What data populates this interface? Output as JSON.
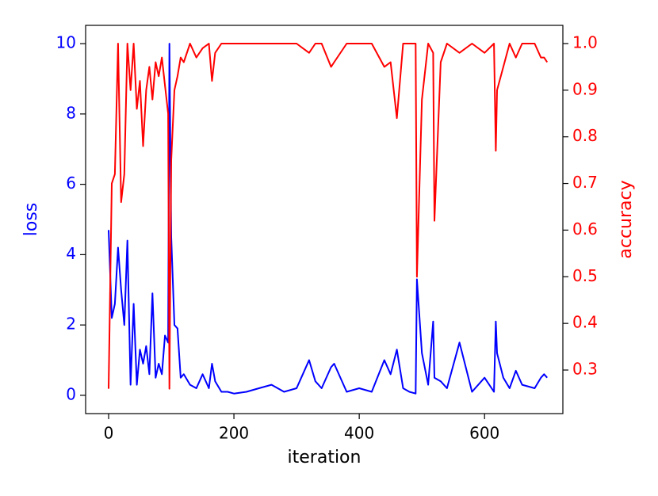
{
  "chart_data": {
    "type": "line",
    "x_label": "iteration",
    "y_label": "loss",
    "y2_label": "accuracy",
    "x": [
      0,
      5,
      10,
      15,
      20,
      25,
      30,
      35,
      40,
      45,
      50,
      55,
      60,
      65,
      70,
      75,
      80,
      85,
      90,
      95,
      97,
      100,
      105,
      110,
      115,
      120,
      130,
      140,
      150,
      160,
      165,
      170,
      180,
      190,
      200,
      220,
      240,
      260,
      280,
      300,
      320,
      330,
      340,
      355,
      360,
      380,
      400,
      420,
      440,
      450,
      460,
      470,
      480,
      490,
      492,
      500,
      510,
      518,
      520,
      530,
      540,
      560,
      580,
      600,
      615,
      618,
      620,
      630,
      640,
      650,
      660,
      680,
      690,
      695,
      700
    ],
    "series": [
      {
        "color": "#0000ff",
        "axis": "y",
        "values": [
          4.7,
          2.2,
          2.6,
          4.2,
          3.0,
          2.0,
          4.4,
          0.3,
          2.6,
          0.3,
          1.3,
          0.9,
          1.4,
          0.6,
          2.9,
          0.5,
          0.9,
          0.6,
          1.7,
          1.5,
          10.0,
          4.5,
          2.0,
          1.9,
          0.5,
          0.6,
          0.3,
          0.2,
          0.6,
          0.2,
          0.9,
          0.4,
          0.1,
          0.1,
          0.05,
          0.1,
          0.2,
          0.3,
          0.1,
          0.2,
          1.0,
          0.4,
          0.2,
          0.8,
          0.9,
          0.1,
          0.2,
          0.1,
          1.0,
          0.6,
          1.3,
          0.2,
          0.1,
          0.05,
          3.3,
          1.2,
          0.3,
          2.1,
          0.5,
          0.4,
          0.2,
          1.5,
          0.1,
          0.5,
          0.1,
          2.1,
          1.2,
          0.5,
          0.2,
          0.7,
          0.3,
          0.2,
          0.5,
          0.6,
          0.5
        ]
      },
      {
        "color": "#ff0000",
        "axis": "y2",
        "values": [
          0.26,
          0.7,
          0.72,
          1.0,
          0.66,
          0.72,
          1.0,
          0.9,
          1.0,
          0.86,
          0.92,
          0.78,
          0.9,
          0.95,
          0.88,
          0.96,
          0.93,
          0.97,
          0.91,
          0.85,
          0.26,
          0.75,
          0.9,
          0.93,
          0.97,
          0.96,
          1.0,
          0.97,
          0.99,
          1.0,
          0.92,
          0.98,
          1.0,
          1.0,
          1.0,
          1.0,
          1.0,
          1.0,
          1.0,
          1.0,
          0.98,
          1.0,
          1.0,
          0.95,
          0.96,
          1.0,
          1.0,
          1.0,
          0.95,
          0.96,
          0.84,
          1.0,
          1.0,
          1.0,
          0.5,
          0.88,
          1.0,
          0.98,
          0.62,
          0.96,
          1.0,
          0.98,
          1.0,
          0.98,
          1.0,
          0.77,
          0.9,
          0.95,
          1.0,
          0.97,
          1.0,
          1.0,
          0.97,
          0.97,
          0.96
        ]
      }
    ],
    "xlim": [
      -36.7,
      725
    ],
    "xticks": [
      0,
      200,
      400,
      600
    ],
    "ylim": [
      -0.52,
      10.52
    ],
    "yticks": [
      0,
      2,
      4,
      6,
      8,
      10
    ],
    "y2lim": [
      0.2066,
      1.039
    ],
    "y2ticks": [
      0.3,
      0.4,
      0.5,
      0.6,
      0.7,
      0.8,
      0.9,
      {
        "value": 1.0,
        "label": "1.0"
      }
    ]
  }
}
